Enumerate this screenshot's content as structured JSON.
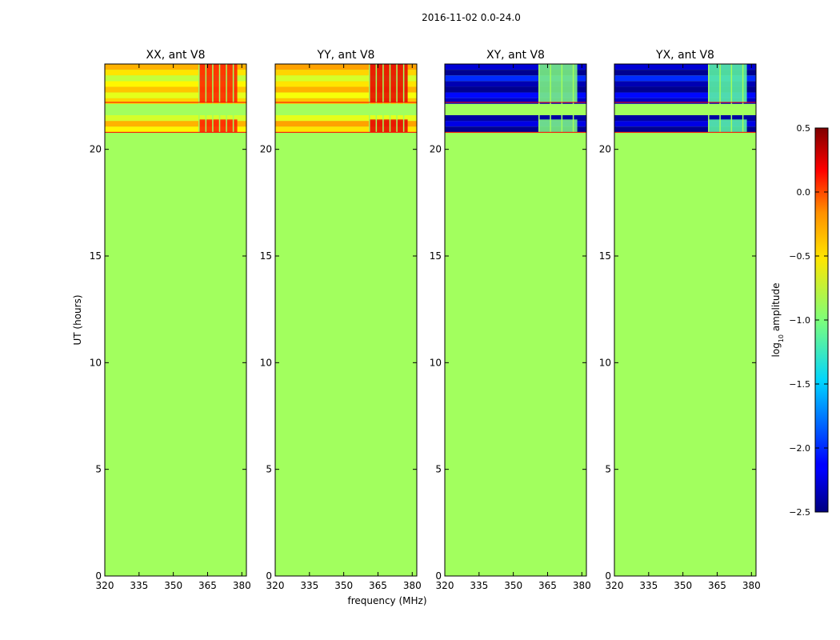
{
  "chart_data": {
    "type": "heatmap",
    "suptitle": "2016-11-02 0.0-24.0",
    "ylabel": "UT (hours)",
    "xlabel": "frequency (MHz)",
    "xlim": [
      320,
      382
    ],
    "ylim": [
      0,
      24
    ],
    "xticks": [
      320,
      335,
      350,
      365,
      380
    ],
    "yticks": [
      0,
      5,
      10,
      15,
      20
    ],
    "colormap": "jet",
    "colorbar": {
      "label": "log10 amplitude",
      "min": -2.5,
      "max": 0.5,
      "ticks": [
        -2.5,
        -2.0,
        -1.5,
        -1.0,
        -0.5,
        0.0,
        0.5
      ],
      "tick_labels": [
        "−2.5",
        "−2.0",
        "−1.5",
        "−1.0",
        "−0.5",
        "0.0",
        "0.5"
      ]
    },
    "panels": [
      {
        "title": "XX, ant V8",
        "background_value": -0.9,
        "data_hours": [
          20.8,
          24.0
        ],
        "gap_hours": [
          21.4,
          22.2
        ],
        "band_values": [
          -0.6,
          -0.4,
          -0.75,
          -0.45,
          -0.65,
          -0.5,
          -0.7,
          -0.45,
          -0.6,
          -0.8,
          -0.55,
          -0.4
        ],
        "hot_region": {
          "freq": [
            361,
            378
          ],
          "value": 0.05
        },
        "freq_stripes": [
          361,
          364,
          367,
          370,
          373,
          376
        ]
      },
      {
        "title": "YY, ant V8",
        "background_value": -0.9,
        "data_hours": [
          20.8,
          24.0
        ],
        "gap_hours": [
          21.4,
          22.2
        ],
        "band_values": [
          -0.55,
          -0.35,
          -0.7,
          -0.4,
          -0.6,
          -0.45,
          -0.65,
          -0.4,
          -0.55,
          -0.75,
          -0.5,
          -0.35
        ],
        "hot_region": {
          "freq": [
            361,
            378
          ],
          "value": 0.2
        },
        "freq_stripes": [
          361,
          364,
          367,
          370,
          373,
          376
        ]
      },
      {
        "title": "XY, ant V8",
        "background_value": -0.9,
        "data_hours": [
          20.8,
          24.0
        ],
        "gap_hours": [
          21.4,
          22.2
        ],
        "band_values": [
          -2.45,
          -2.2,
          -2.4,
          -1.9,
          -2.45,
          -2.3,
          -2.1,
          -2.45,
          -2.35,
          -2.0,
          -2.45,
          -2.25
        ],
        "hot_region": {
          "freq": [
            361,
            378
          ],
          "value": -1.0
        },
        "freq_stripes": [
          361,
          366,
          371,
          376
        ]
      },
      {
        "title": "YX, ant V8",
        "background_value": -0.9,
        "data_hours": [
          20.8,
          24.0
        ],
        "gap_hours": [
          21.4,
          22.2
        ],
        "band_values": [
          -2.45,
          -2.2,
          -2.4,
          -1.9,
          -2.45,
          -2.3,
          -2.1,
          -2.45,
          -2.35,
          -2.0,
          -2.45,
          -2.25
        ],
        "hot_region": {
          "freq": [
            361,
            378
          ],
          "value": -1.1
        },
        "freq_stripes": [
          361,
          366,
          371,
          376
        ]
      }
    ]
  }
}
